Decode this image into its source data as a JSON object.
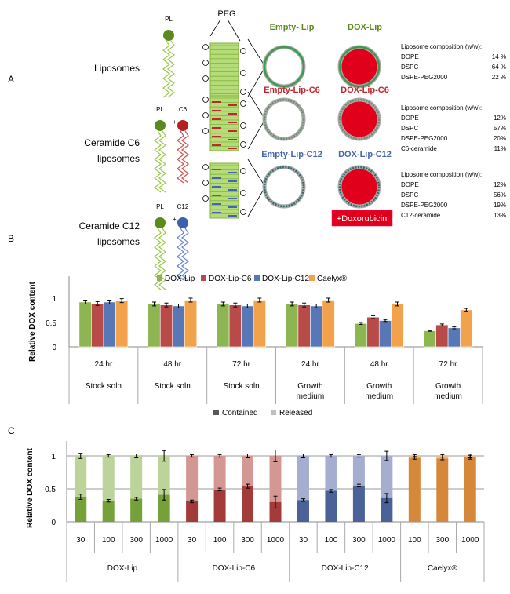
{
  "panel_a": {
    "label": "A",
    "pl_label": "PL",
    "peg_label": "PEG",
    "doxorubicin_label": "+Doxorubicin",
    "rows": [
      {
        "name_lines": [
          "Liposomes"
        ],
        "ceramide_label": "",
        "empty_label": "Empty- Lip",
        "dox_label": "DOX-Lip",
        "color": "#5c8a1e",
        "composition_title": "Liposome composition (w/w):",
        "composition": [
          [
            "DOPE",
            "14 %"
          ],
          [
            "DSPC",
            "64 %"
          ],
          [
            "DSPE-PEG2000",
            "22 %"
          ]
        ]
      },
      {
        "name_lines": [
          "Ceramide C6",
          "liposomes"
        ],
        "ceramide_label": "C6",
        "empty_label": "Empty-Lip-C6",
        "dox_label": "DOX-Lip-C6",
        "color": "#c0272d",
        "composition_title": "Liposome composition (w/w):",
        "composition": [
          [
            "DOPE",
            "12%"
          ],
          [
            "DSPC",
            "57%"
          ],
          [
            "DSPE-PEG2000",
            "20%"
          ],
          [
            "C6-ceramide",
            "11%"
          ]
        ]
      },
      {
        "name_lines": [
          "Ceramide C12",
          "liposomes"
        ],
        "ceramide_label": "C12",
        "empty_label": "Empty-Lip-C12",
        "dox_label": "DOX-Lip-C12",
        "color": "#4466b0",
        "composition_title": "Liposome composition (w/w):",
        "composition": [
          [
            "DOPE",
            "12%"
          ],
          [
            "DSPC",
            "56%"
          ],
          [
            "DSPE-PEG2000",
            "19%"
          ],
          [
            "C12-ceramide",
            "13%"
          ]
        ]
      }
    ]
  },
  "chart_data": [
    {
      "panel": "B",
      "type": "bar",
      "ylabel": "Relative DOX content",
      "ylim": [
        0,
        1.2
      ],
      "yticks": [
        "0",
        "0.5",
        "1"
      ],
      "legend_position": "top",
      "categories": [
        [
          "24 hr",
          "Stock soln"
        ],
        [
          "48 hr",
          "Stock soln"
        ],
        [
          "72 hr",
          "Stock soln"
        ],
        [
          "24 hr",
          "Growth medium"
        ],
        [
          "48 hr",
          "Growth medium"
        ],
        [
          "72 hr",
          "Growth medium"
        ]
      ],
      "series": [
        {
          "name": "DOX-Lip",
          "color": "#8db551",
          "values": [
            0.92,
            0.88,
            0.88,
            0.88,
            0.48,
            0.33
          ],
          "errors": [
            0.04,
            0.04,
            0.04,
            0.04,
            0.02,
            0.01
          ]
        },
        {
          "name": "DOX-Lip-C6",
          "color": "#b84a47",
          "values": [
            0.89,
            0.86,
            0.86,
            0.86,
            0.61,
            0.45
          ],
          "errors": [
            0.04,
            0.04,
            0.04,
            0.04,
            0.03,
            0.02
          ]
        },
        {
          "name": "DOX-Lip-C12",
          "color": "#5877b6",
          "values": [
            0.92,
            0.84,
            0.84,
            0.84,
            0.54,
            0.39
          ],
          "errors": [
            0.04,
            0.04,
            0.04,
            0.04,
            0.02,
            0.02
          ]
        },
        {
          "name": "Caelyx®",
          "color": "#f2a24a",
          "values": [
            0.95,
            0.96,
            0.96,
            0.96,
            0.88,
            0.76
          ],
          "errors": [
            0.04,
            0.04,
            0.04,
            0.04,
            0.04,
            0.03
          ]
        }
      ]
    },
    {
      "panel": "C",
      "type": "bar",
      "stacked": true,
      "ylabel": "Relative DOX content",
      "ylim": [
        0,
        1.2
      ],
      "yticks": [
        "0",
        "0.5",
        "1"
      ],
      "legend_position": "top",
      "legend": [
        {
          "name": "Contained",
          "color": "#595959"
        },
        {
          "name": "Released",
          "color": "#bfbfbf"
        }
      ],
      "groups": [
        {
          "name": "DOX-Lip",
          "contained_color": "#76a139",
          "released_color": "#bcd39a",
          "x": [
            "30",
            "100",
            "300",
            "1000"
          ],
          "contained": [
            0.38,
            0.32,
            0.35,
            0.41
          ],
          "contained_err": [
            0.04,
            0.02,
            0.02,
            0.08
          ],
          "released_err": [
            0.04,
            0.02,
            0.03,
            0.08
          ]
        },
        {
          "name": "DOX-Lip-C6",
          "contained_color": "#a33b3b",
          "released_color": "#d49894",
          "x": [
            "30",
            "100",
            "300",
            "1000"
          ],
          "contained": [
            0.31,
            0.49,
            0.54,
            0.3
          ],
          "contained_err": [
            0.02,
            0.02,
            0.03,
            0.09
          ],
          "released_err": [
            0.02,
            0.02,
            0.03,
            0.09
          ]
        },
        {
          "name": "DOX-Lip-C12",
          "contained_color": "#4a6298",
          "released_color": "#a5aed1",
          "x": [
            "30",
            "100",
            "300",
            "1000"
          ],
          "contained": [
            0.33,
            0.47,
            0.55,
            0.36
          ],
          "contained_err": [
            0.02,
            0.02,
            0.02,
            0.07
          ],
          "released_err": [
            0.03,
            0.02,
            0.02,
            0.07
          ]
        },
        {
          "name": "Caelyx®",
          "contained_color": "#d5883a",
          "released_color": "#f2b98a",
          "x": [
            "100",
            "300",
            "1000"
          ],
          "contained": [
            0.97,
            0.96,
            0.98
          ],
          "contained_err": [
            0.02,
            0.02,
            0.03
          ],
          "released_err": [
            0.02,
            0.02,
            0.03
          ]
        }
      ]
    }
  ],
  "panel_b_label": "B",
  "panel_c_label": "C"
}
